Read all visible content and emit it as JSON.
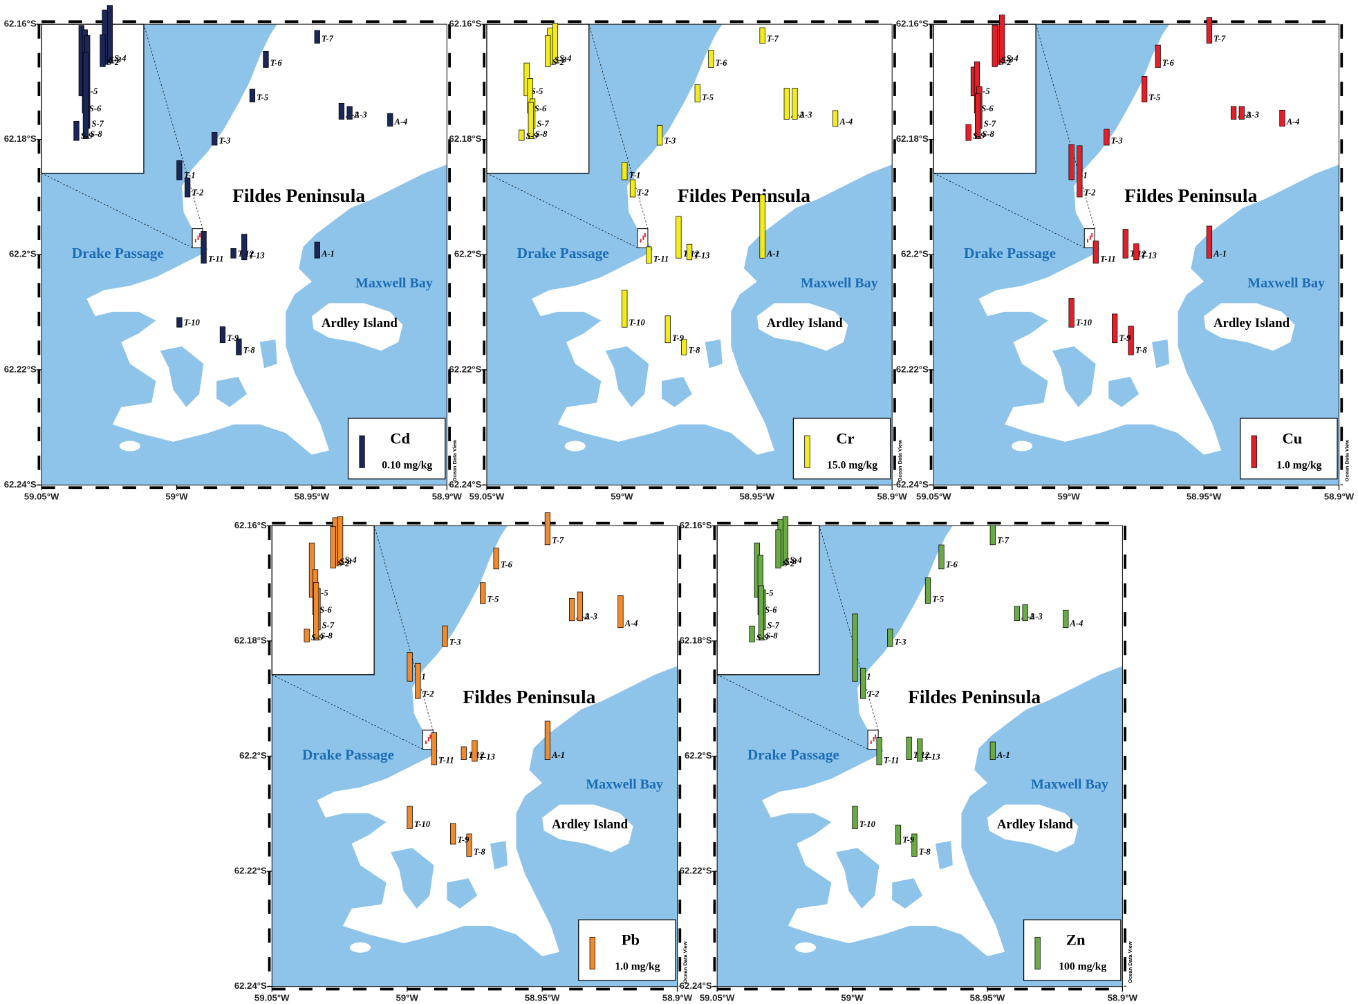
{
  "map_data": {
    "axes": {
      "xlim": [
        -59.05,
        -58.9
      ],
      "xticks": [
        {
          "value": -59.05,
          "label": "59.05°W"
        },
        {
          "value": -59.0,
          "label": "59°W"
        },
        {
          "value": -58.95,
          "label": "58.95°W"
        },
        {
          "value": -58.9,
          "label": "58.9°W"
        }
      ],
      "ylim": [
        -62.24,
        -62.16
      ],
      "yticks": [
        {
          "value": -62.16,
          "label": "62.16°S"
        },
        {
          "value": -62.18,
          "label": "62.18°S"
        },
        {
          "value": -62.2,
          "label": "62.2°S"
        },
        {
          "value": -62.22,
          "label": "62.22°S"
        },
        {
          "value": -62.24,
          "label": "62.24°S"
        }
      ],
      "credit": "Ocean Data View"
    },
    "places": {
      "peninsula": "Fildes Peninsula",
      "passage": "Drake Passage",
      "bay": "Maxwell Bay",
      "island": "Ardley Island"
    },
    "stations": [
      {
        "name": "S-4",
        "lon": -58.99166,
        "lat": -62.19635
      },
      {
        "name": "S-3",
        "lon": -58.99185,
        "lat": -62.19638
      },
      {
        "name": "S-2",
        "lon": -58.99193,
        "lat": -62.19643
      },
      {
        "name": "S-5",
        "lon": -58.99273,
        "lat": -62.19708
      },
      {
        "name": "S-6",
        "lon": -58.9926,
        "lat": -62.19746
      },
      {
        "name": "S-7",
        "lon": -58.99251,
        "lat": -62.1978
      },
      {
        "name": "S-8",
        "lon": -58.99257,
        "lat": -62.19803
      },
      {
        "name": "S-9",
        "lon": -58.99292,
        "lat": -62.19807
      },
      {
        "name": "T-1",
        "lon": -58.999,
        "lat": -62.187
      },
      {
        "name": "T-2",
        "lon": -58.996,
        "lat": -62.19
      },
      {
        "name": "T-3",
        "lon": -58.986,
        "lat": -62.181
      },
      {
        "name": "T-5",
        "lon": -58.972,
        "lat": -62.1735
      },
      {
        "name": "T-6",
        "lon": -58.967,
        "lat": -62.1675
      },
      {
        "name": "T-7",
        "lon": -58.948,
        "lat": -62.1633
      },
      {
        "name": "T-8",
        "lon": -58.977,
        "lat": -62.2174
      },
      {
        "name": "T-9",
        "lon": -58.983,
        "lat": -62.2153
      },
      {
        "name": "T-10",
        "lon": -58.999,
        "lat": -62.2126
      },
      {
        "name": "T-11",
        "lon": -58.99,
        "lat": -62.2015
      },
      {
        "name": "T-12",
        "lon": -58.979,
        "lat": -62.2006
      },
      {
        "name": "T-13",
        "lon": -58.975,
        "lat": -62.2009
      },
      {
        "name": "A-1",
        "lon": -58.948,
        "lat": -62.2006
      },
      {
        "name": "A-2",
        "lon": -58.939,
        "lat": -62.1765
      },
      {
        "name": "A-3",
        "lon": -58.936,
        "lat": -62.1765
      },
      {
        "name": "A-4",
        "lon": -58.921,
        "lat": -62.1777
      }
    ],
    "panels": [
      {
        "element": "Cd",
        "color": "#1b2657",
        "legend": {
          "value": 0.1,
          "label": "0.10 mg/kg"
        },
        "values": [
          0.18,
          0.17,
          0.1,
          0.22,
          0.26,
          0.29,
          0.27,
          0.06,
          0.06,
          0.06,
          0.04,
          0.04,
          0.05,
          0.04,
          0.05,
          0.05,
          0.03,
          0.1,
          0.03,
          0.08,
          0.05,
          0.05,
          0.04,
          0.04
        ]
      },
      {
        "element": "Cr",
        "color": "#f3ec1c",
        "legend": {
          "value": 15,
          "label": "15.0 mg/kg"
        },
        "values": [
          18.6,
          17,
          14.6,
          15.4,
          16.2,
          13.8,
          17,
          4.9,
          8.1,
          8.1,
          9.3,
          8.1,
          8.1,
          7.3,
          7.3,
          12.6,
          17.4,
          7.7,
          19.5,
          7.3,
          29.6,
          14.6,
          14.6,
          7.3
        ]
      },
      {
        "element": "Cu",
        "color": "#e3202a",
        "legend": {
          "value": 1,
          "label": "1.0 mg/kg"
        },
        "values": [
          1.5,
          1.2,
          1.3,
          0.9,
          1.6,
          1.3,
          1.4,
          0.5,
          1.1,
          1.6,
          0.5,
          0.8,
          0.7,
          0.8,
          0.9,
          0.9,
          0.9,
          0.7,
          0.9,
          0.5,
          1.0,
          0.4,
          0.4,
          0.5
        ]
      },
      {
        "element": "Pb",
        "color": "#f08a2e",
        "legend": {
          "value": 1,
          "label": "1.0 mg/kg"
        },
        "values": [
          1.5,
          1.5,
          1.3,
          1.7,
          1.4,
          1.3,
          1.8,
          0.4,
          0.9,
          1.1,
          0.65,
          0.65,
          0.65,
          1.0,
          0.7,
          0.65,
          0.7,
          1.0,
          0.4,
          0.65,
          1.2,
          0.7,
          0.9,
          1.0
        ]
      },
      {
        "element": "Zn",
        "color": "#6aab45",
        "legend": {
          "value": 100,
          "label": "100 mg/kg"
        },
        "values": [
          150,
          145,
          120,
          170,
          185,
          125,
          170,
          50,
          210,
          95,
          55,
          80,
          75,
          60,
          70,
          60,
          70,
          85,
          70,
          70,
          55,
          45,
          50,
          55
        ]
      }
    ]
  }
}
